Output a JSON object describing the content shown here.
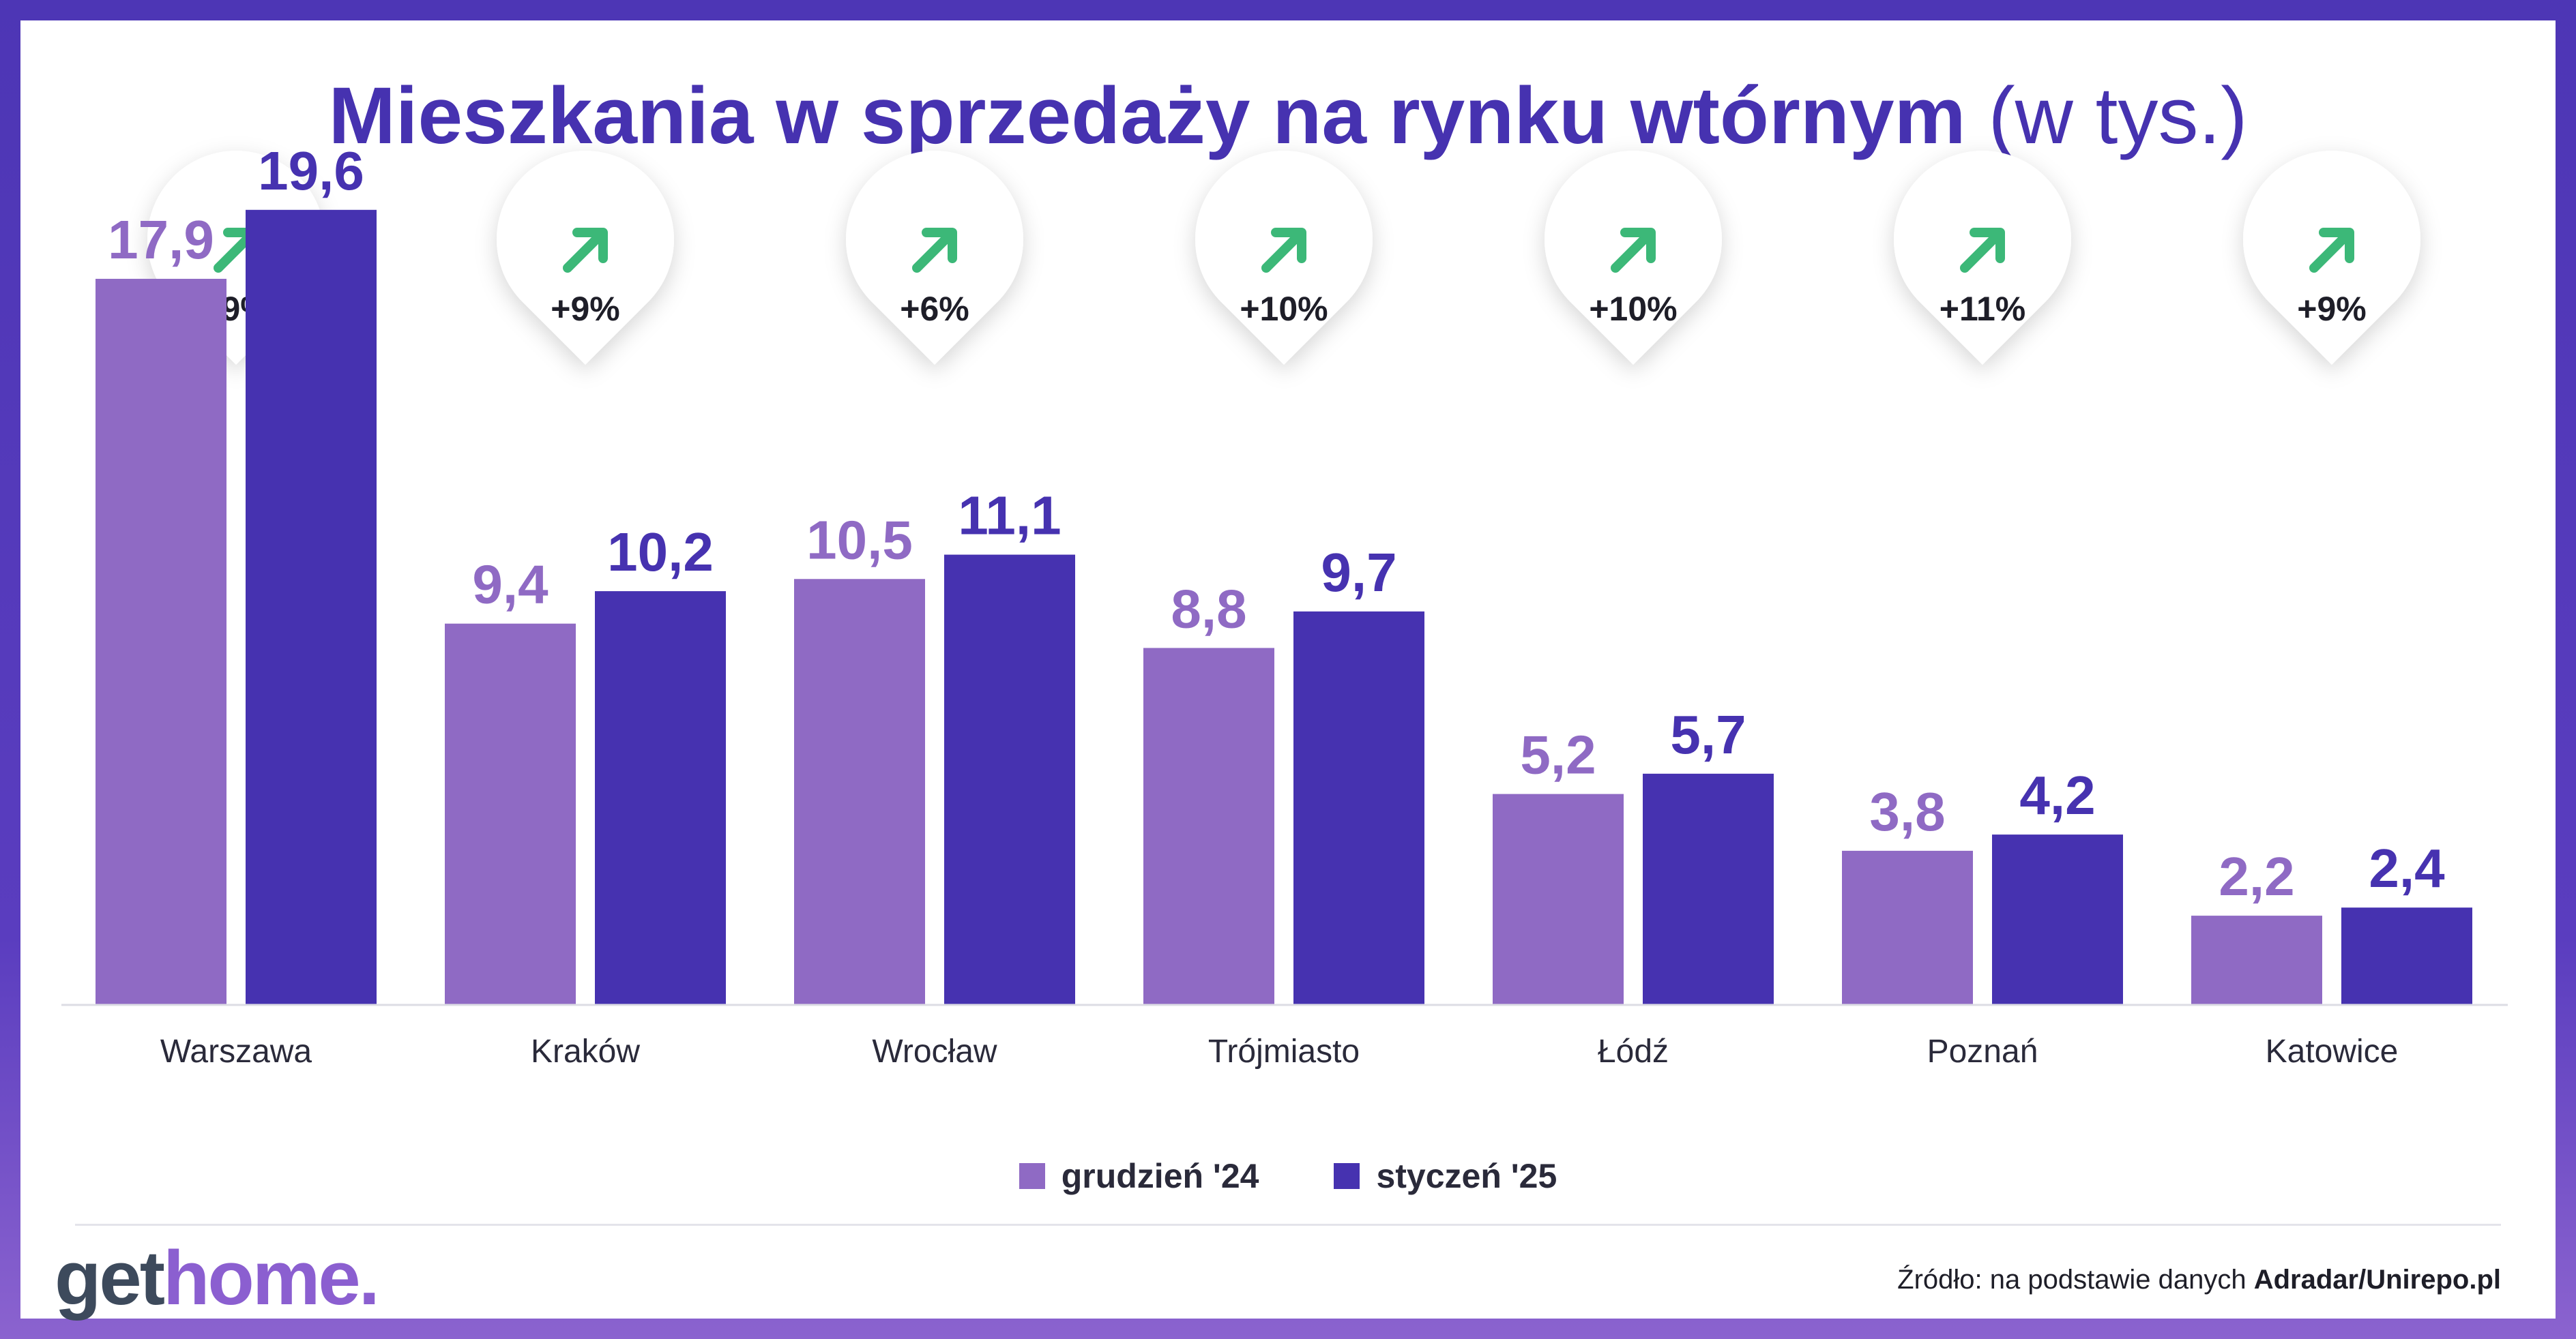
{
  "title": {
    "main": "Mieszkania w sprzedaży na rynku wtórnym",
    "suffix": "(w tys.)"
  },
  "colors": {
    "dec": "#8f6ac4",
    "jan": "#4632b0",
    "title": "#4632b0",
    "arrow": "#3cb878",
    "background": "#5a3dbf"
  },
  "chart_data": {
    "type": "bar",
    "categories": [
      "Warszawa",
      "Kraków",
      "Wrocław",
      "Trójmiasto",
      "Łódź",
      "Poznań",
      "Katowice"
    ],
    "series": [
      {
        "name": "grudzień '24",
        "values": [
          17.9,
          9.4,
          10.5,
          8.8,
          5.2,
          3.8,
          2.2
        ],
        "labels": [
          "17,9",
          "9,4",
          "10,5",
          "8,8",
          "5,2",
          "3,8",
          "2,2"
        ]
      },
      {
        "name": "styczeń '25",
        "values": [
          19.6,
          10.2,
          11.1,
          9.7,
          5.7,
          4.2,
          2.4
        ],
        "labels": [
          "19,6",
          "10,2",
          "11,1",
          "9,7",
          "5,7",
          "4,2",
          "2,4"
        ]
      }
    ],
    "changes": [
      "+9%",
      "+9%",
      "+6%",
      "+10%",
      "+10%",
      "+11%",
      "+9%"
    ],
    "ylim": [
      0,
      20
    ],
    "legend_position": "bottom-center",
    "grid": false
  },
  "legend": {
    "dec": "grudzień '24",
    "jan": "styczeń '25"
  },
  "logo": {
    "part1": "get",
    "part2": "home."
  },
  "source": {
    "prefix": "Źródło: na podstawie danych",
    "name": "Adradar/Unirepo.pl"
  },
  "icons": {
    "arrow": "arrow-up-right-icon",
    "badge": "change-badge"
  }
}
